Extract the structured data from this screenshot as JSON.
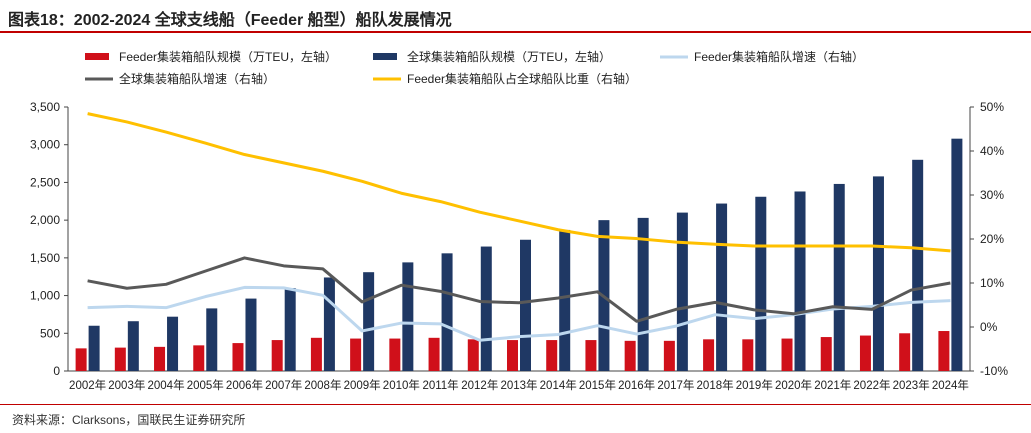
{
  "title": "图表18：2002-2024 全球支线船（Feeder 船型）船队发展情况",
  "source": "资料来源：Clarksons，国联民生证券研究所",
  "chart_data": {
    "type": "bar+line",
    "categories": [
      "2002年",
      "2003年",
      "2004年",
      "2005年",
      "2006年",
      "2007年",
      "2008年",
      "2009年",
      "2010年",
      "2011年",
      "2012年",
      "2013年",
      "2014年",
      "2015年",
      "2016年",
      "2017年",
      "2018年",
      "2019年",
      "2020年",
      "2021年",
      "2022年",
      "2023年",
      "2024年"
    ],
    "left_axis": {
      "ylim": [
        0,
        3500
      ],
      "ticks": [
        0,
        500,
        1000,
        1500,
        2000,
        2500,
        3000,
        3500
      ],
      "tick_labels": [
        "0",
        "500",
        "1,000",
        "1,500",
        "2,000",
        "2,500",
        "3,000",
        "3,500"
      ]
    },
    "right_axis": {
      "ylim": [
        -10,
        50
      ],
      "ticks": [
        -10,
        0,
        10,
        20,
        30,
        40,
        50
      ],
      "tick_labels": [
        "-10%",
        "0%",
        "10%",
        "20%",
        "30%",
        "40%",
        "50%"
      ]
    },
    "series": [
      {
        "name": "Feeder集装箱船队规模（万TEU，左轴）",
        "kind": "bar",
        "axis": "left",
        "color": "#d0101a",
        "values": [
          300,
          310,
          320,
          340,
          370,
          410,
          440,
          430,
          430,
          440,
          420,
          410,
          410,
          410,
          400,
          400,
          420,
          420,
          430,
          450,
          470,
          500,
          530
        ]
      },
      {
        "name": "全球集装箱船队规模（万TEU，左轴）",
        "kind": "bar",
        "axis": "left",
        "color": "#1f3864",
        "values": [
          600,
          660,
          720,
          830,
          960,
          1100,
          1240,
          1310,
          1440,
          1560,
          1650,
          1740,
          1870,
          2000,
          2030,
          2100,
          2220,
          2310,
          2380,
          2480,
          2580,
          2800,
          3080
        ]
      },
      {
        "name": "Feeder集装箱船队增速（右轴）",
        "kind": "line",
        "axis": "right",
        "color": "#bdd7ee",
        "values": [
          4.4,
          4.7,
          4.4,
          6.9,
          9.0,
          8.9,
          7.2,
          -0.9,
          0.9,
          0.7,
          -3.0,
          -2.2,
          -1.7,
          0.3,
          -1.6,
          0.2,
          2.8,
          1.9,
          2.8,
          4.1,
          4.7,
          5.6,
          6.0
        ]
      },
      {
        "name": "全球集装箱船队增速（右轴）",
        "kind": "line",
        "axis": "right",
        "color": "#595959",
        "values": [
          10.5,
          8.8,
          9.7,
          12.7,
          15.7,
          13.9,
          13.2,
          5.7,
          9.5,
          8.1,
          5.8,
          5.5,
          6.6,
          8.0,
          1.3,
          4.0,
          5.6,
          3.9,
          3.0,
          4.6,
          4.0,
          8.4,
          10.0
        ]
      },
      {
        "name": "Feeder集装箱船队占全球船队比重（右轴）",
        "kind": "line",
        "axis": "right",
        "color": "#ffc000",
        "values": [
          48.5,
          46.6,
          44.3,
          41.8,
          39.2,
          37.3,
          35.4,
          33.1,
          30.4,
          28.5,
          26.1,
          24.1,
          22.1,
          20.6,
          20.1,
          19.3,
          18.8,
          18.4,
          18.4,
          18.4,
          18.4,
          18.0,
          17.3
        ]
      }
    ],
    "legend_placement": "top"
  }
}
